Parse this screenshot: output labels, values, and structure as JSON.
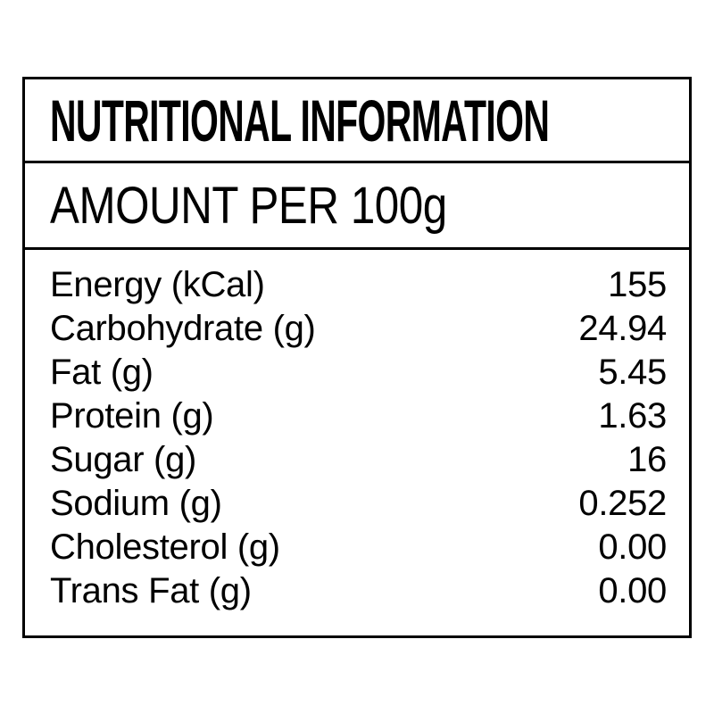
{
  "label": {
    "title": "NUTRITIONAL INFORMATION",
    "subtitle": "AMOUNT PER 100g",
    "rows": [
      {
        "name": "Energy (kCal)",
        "value": "155"
      },
      {
        "name": "Carbohydrate (g)",
        "value": "24.94"
      },
      {
        "name": "Fat (g)",
        "value": "5.45"
      },
      {
        "name": "Protein (g)",
        "value": "1.63"
      },
      {
        "name": "Sugar (g)",
        "value": "16"
      },
      {
        "name": "Sodium (g)",
        "value": "0.252"
      },
      {
        "name": "Cholesterol (g)",
        "value": "0.00"
      },
      {
        "name": "Trans Fat (g)",
        "value": "0.00"
      }
    ],
    "colors": {
      "text": "#000000",
      "border": "#000000",
      "background": "#ffffff"
    }
  }
}
